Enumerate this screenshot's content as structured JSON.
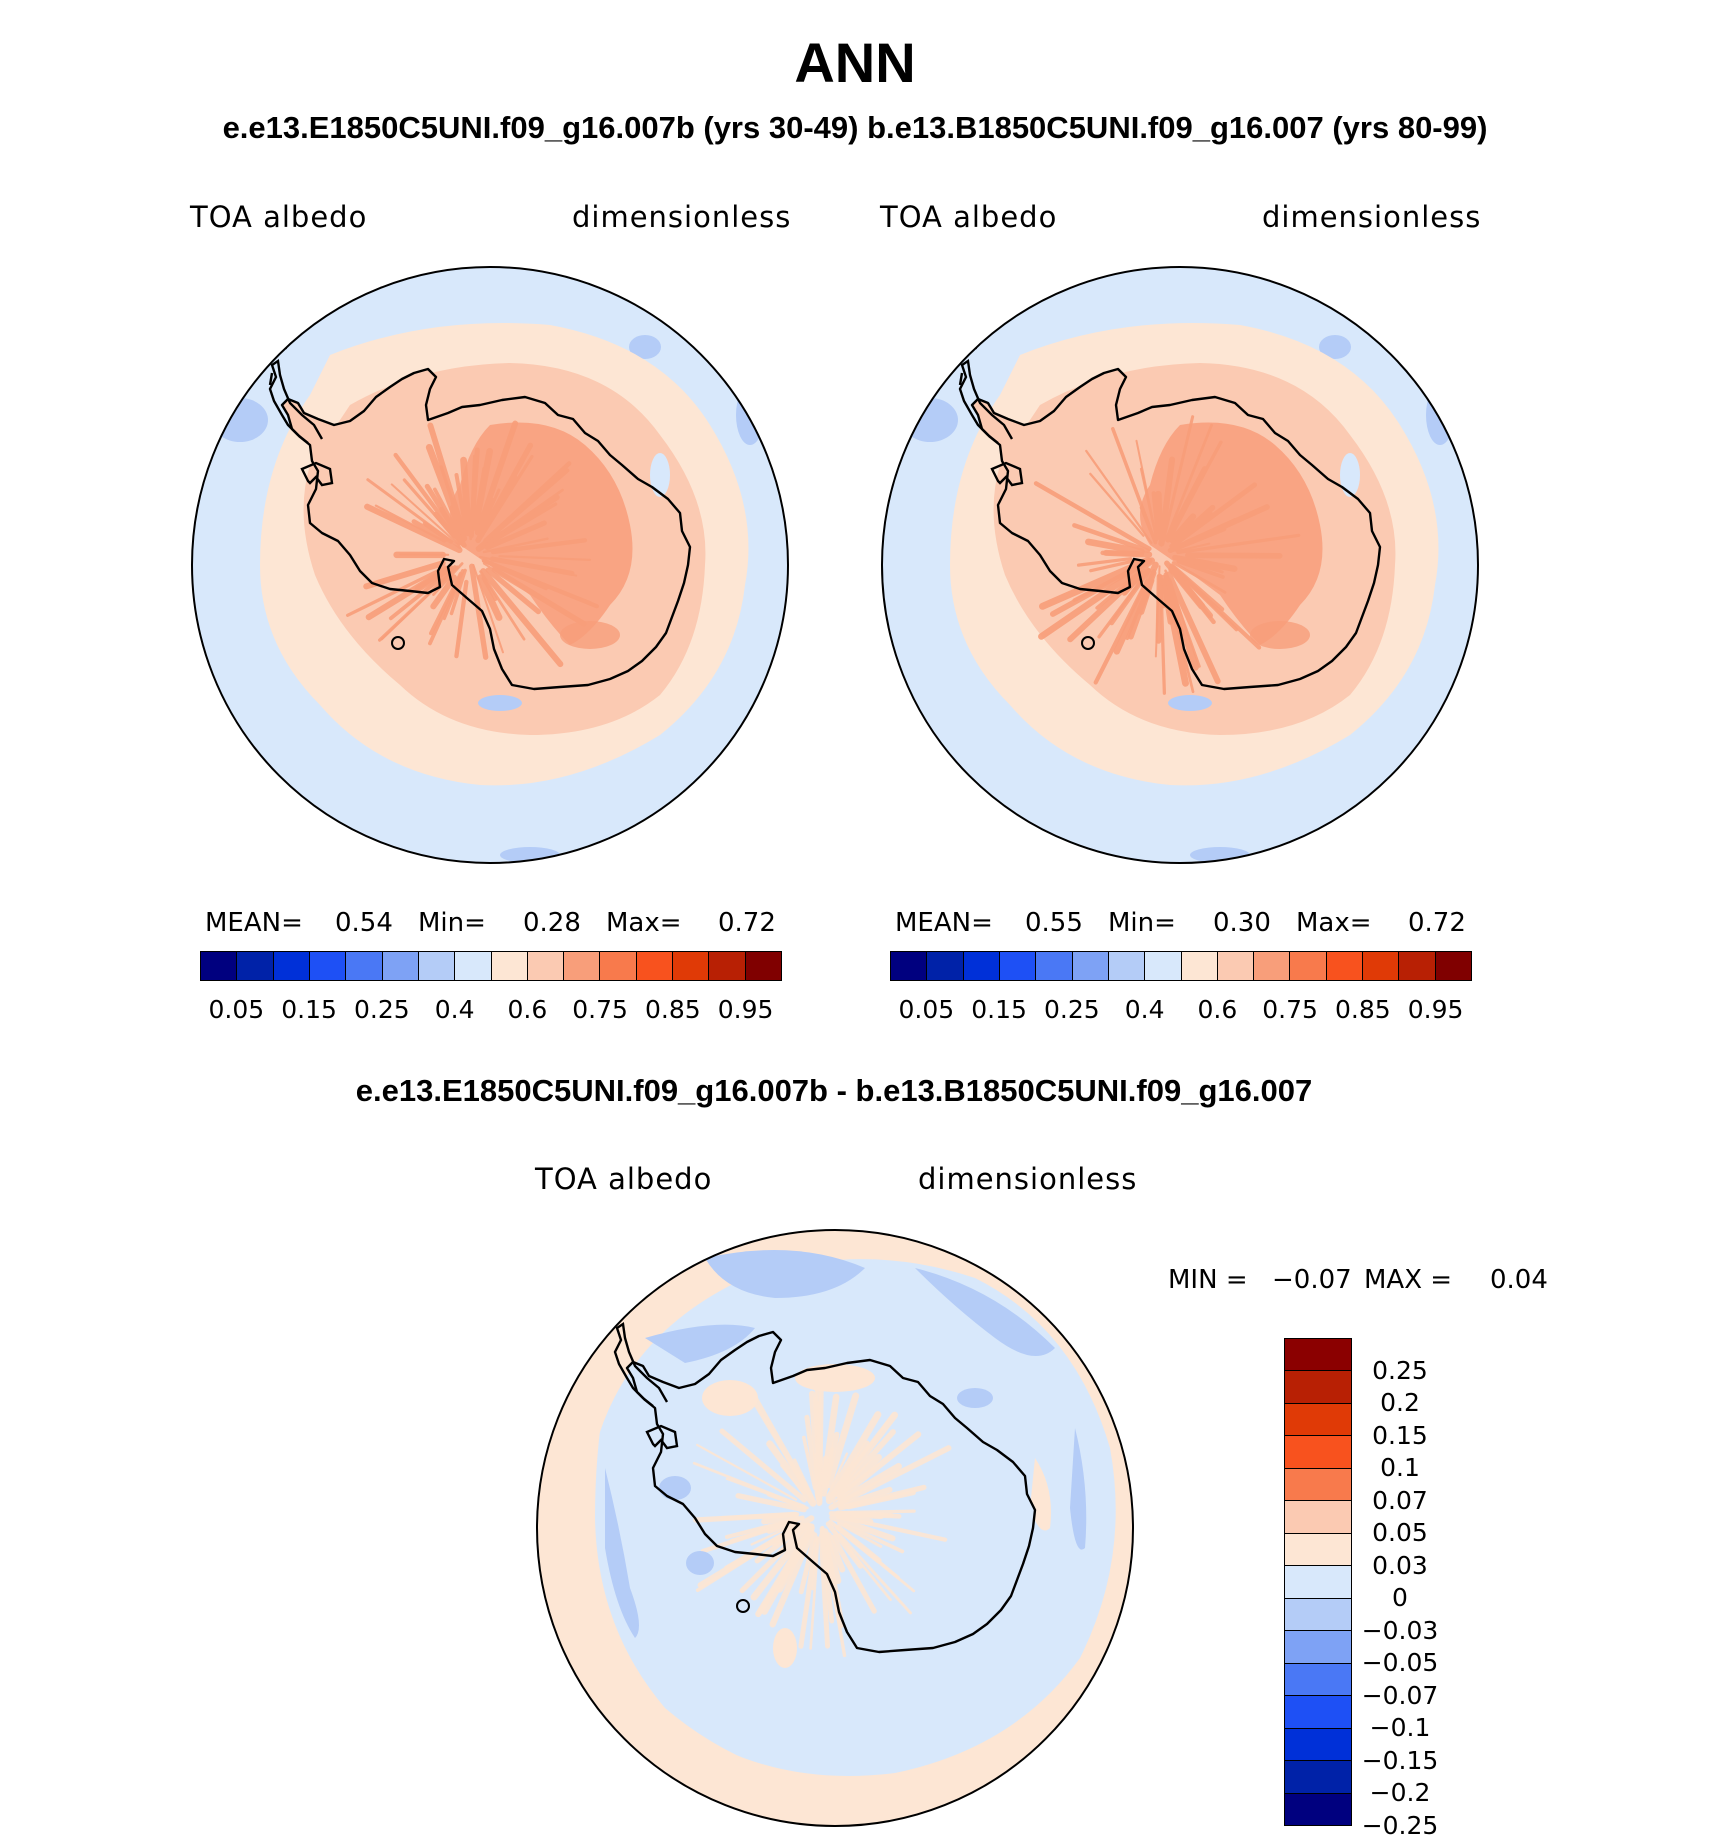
{
  "title": "ANN",
  "subtitle_top": "e.e13.E1850C5UNI.f09_g16.007b (yrs 30-49)  b.e13.B1850C5UNI.f09_g16.007 (yrs 80-99)",
  "subtitle_diff": "e.e13.E1850C5UNI.f09_g16.007b - b.e13.B1850C5UNI.f09_g16.007",
  "panels": [
    {
      "variable": "TOA albedo",
      "units": "dimensionless",
      "mean_label": "MEAN=",
      "mean": "0.54",
      "min_label": "Min=",
      "min": "0.28",
      "max_label": "Max=",
      "max": "0.72"
    },
    {
      "variable": "TOA albedo",
      "units": "dimensionless",
      "mean_label": "MEAN=",
      "mean": "0.55",
      "min_label": "Min=",
      "min": "0.30",
      "max_label": "Max=",
      "max": "0.72"
    }
  ],
  "diff_panel": {
    "variable": "TOA albedo",
    "units": "dimensionless",
    "min_label": "MIN =",
    "min": "−0.07",
    "max_label": "MAX =",
    "max": "0.04"
  },
  "colorbar_abs": {
    "colors": [
      "#00007f",
      "#0022a8",
      "#0030d8",
      "#1e50f5",
      "#4a78f5",
      "#7ea2f5",
      "#b4ccf7",
      "#d8e8fb",
      "#fde6d4",
      "#fbcab2",
      "#f89e7a",
      "#f87a4c",
      "#f8521e",
      "#e03a06",
      "#b82004",
      "#800000"
    ],
    "ticks": [
      "0.05",
      "0.15",
      "0.25",
      "0.4",
      "0.6",
      "0.75",
      "0.85",
      "0.95"
    ]
  },
  "colorbar_diff": {
    "colors": [
      "#8b0000",
      "#b82004",
      "#e03a06",
      "#f8521e",
      "#f87a4c",
      "#fbcab2",
      "#fde6d4",
      "#d8e8fb",
      "#b4ccf7",
      "#7ea2f5",
      "#4a78f5",
      "#1e50f5",
      "#0030d8",
      "#0022a8",
      "#00007f"
    ],
    "ticks": [
      "0.25",
      "0.2",
      "0.15",
      "0.1",
      "0.07",
      "0.05",
      "0.03",
      "0",
      "−0.03",
      "−0.05",
      "−0.07",
      "−0.1",
      "−0.15",
      "−0.2",
      "−0.25"
    ]
  },
  "palette": {
    "ocean": "#d8e8fb",
    "ocean_dark": "#b4ccf7",
    "ring": "#fde6d4",
    "coast_band": "#fbcab2",
    "ice_high": "#f89e7a"
  }
}
